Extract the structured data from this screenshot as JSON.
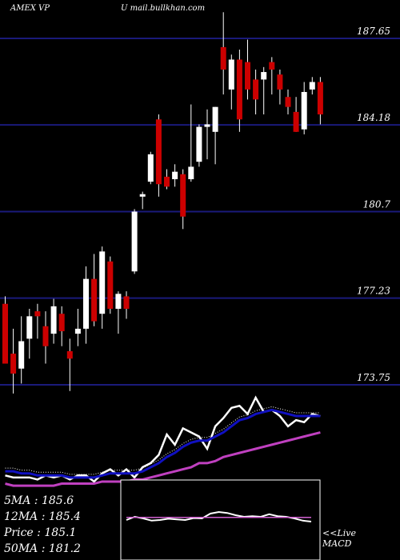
{
  "header": {
    "exchange_symbol": "AMEX  VP",
    "source": "U mail.bullkhan.com"
  },
  "stats": {
    "ma5": "5MA : 185.6",
    "ma12": "12MA : 185.4",
    "price": "Price   : 185.1",
    "ma50": "50MA : 181.2"
  },
  "macd_label": {
    "live": "<<Live",
    "name": "MACD"
  },
  "colors": {
    "background": "#000000",
    "bull": "#ffffff",
    "bear": "#cc0000",
    "gridline": "#1a1a7a",
    "ma_fast": "#1010c0",
    "ma_slow": "#c040c0",
    "macd_line": "#ffffff",
    "macd_signal": "#d060d0"
  },
  "chart_data": [
    {
      "type": "candlestick",
      "title": "",
      "yticks": [
        187.65,
        184.18,
        180.7,
        177.23,
        173.75
      ],
      "ylim": [
        173.75,
        189.1
      ],
      "grid": true,
      "candles": [
        {
          "o": 177.0,
          "h": 177.3,
          "l": 174.6,
          "c": 174.6
        },
        {
          "o": 175.0,
          "h": 176.0,
          "l": 173.4,
          "c": 174.2
        },
        {
          "o": 174.4,
          "h": 176.5,
          "l": 173.8,
          "c": 175.5
        },
        {
          "o": 175.6,
          "h": 176.8,
          "l": 174.8,
          "c": 176.5
        },
        {
          "o": 176.7,
          "h": 177.0,
          "l": 175.6,
          "c": 176.5
        },
        {
          "o": 176.1,
          "h": 176.7,
          "l": 174.6,
          "c": 175.3
        },
        {
          "o": 175.8,
          "h": 177.2,
          "l": 175.4,
          "c": 176.9
        },
        {
          "o": 176.6,
          "h": 176.9,
          "l": 175.3,
          "c": 175.9
        },
        {
          "o": 175.1,
          "h": 175.6,
          "l": 173.5,
          "c": 174.8
        },
        {
          "o": 175.8,
          "h": 176.8,
          "l": 175.3,
          "c": 176.0
        },
        {
          "o": 176.0,
          "h": 178.5,
          "l": 175.4,
          "c": 178.0
        },
        {
          "o": 178.0,
          "h": 179.0,
          "l": 176.1,
          "c": 176.3
        },
        {
          "o": 176.6,
          "h": 179.3,
          "l": 176.0,
          "c": 179.1
        },
        {
          "o": 178.7,
          "h": 178.9,
          "l": 176.6,
          "c": 176.8
        },
        {
          "o": 176.8,
          "h": 177.5,
          "l": 175.8,
          "c": 177.4
        },
        {
          "o": 177.3,
          "h": 177.5,
          "l": 176.4,
          "c": 176.8
        },
        {
          "o": 178.3,
          "h": 180.8,
          "l": 178.2,
          "c": 180.7
        },
        {
          "o": 181.3,
          "h": 181.5,
          "l": 180.8,
          "c": 181.4
        },
        {
          "o": 181.9,
          "h": 183.1,
          "l": 181.8,
          "c": 183.0
        },
        {
          "o": 184.4,
          "h": 184.6,
          "l": 181.3,
          "c": 181.8
        },
        {
          "o": 182.1,
          "h": 182.4,
          "l": 181.6,
          "c": 181.7
        },
        {
          "o": 182.0,
          "h": 182.6,
          "l": 181.7,
          "c": 182.3
        },
        {
          "o": 182.2,
          "h": 182.4,
          "l": 180.0,
          "c": 180.5
        },
        {
          "o": 182.0,
          "h": 185.0,
          "l": 181.9,
          "c": 182.5
        },
        {
          "o": 182.7,
          "h": 184.2,
          "l": 182.5,
          "c": 184.1
        },
        {
          "o": 184.1,
          "h": 184.8,
          "l": 182.8,
          "c": 184.2
        },
        {
          "o": 183.9,
          "h": 184.9,
          "l": 182.6,
          "c": 184.9
        },
        {
          "o": 187.3,
          "h": 188.7,
          "l": 185.4,
          "c": 186.4
        },
        {
          "o": 185.6,
          "h": 187.0,
          "l": 184.8,
          "c": 186.8
        },
        {
          "o": 186.8,
          "h": 187.2,
          "l": 183.9,
          "c": 184.4
        },
        {
          "o": 186.7,
          "h": 187.6,
          "l": 185.2,
          "c": 185.6
        },
        {
          "o": 186.0,
          "h": 186.4,
          "l": 184.6,
          "c": 185.2
        },
        {
          "o": 186.0,
          "h": 186.5,
          "l": 184.6,
          "c": 186.3
        },
        {
          "o": 186.7,
          "h": 186.9,
          "l": 185.4,
          "c": 186.4
        },
        {
          "o": 186.2,
          "h": 186.4,
          "l": 185.0,
          "c": 185.6
        },
        {
          "o": 185.3,
          "h": 185.6,
          "l": 184.6,
          "c": 184.9
        },
        {
          "o": 184.7,
          "h": 185.3,
          "l": 183.9,
          "c": 183.9
        },
        {
          "o": 184.0,
          "h": 185.9,
          "l": 183.8,
          "c": 185.5
        },
        {
          "o": 185.6,
          "h": 186.1,
          "l": 185.4,
          "c": 185.9
        },
        {
          "o": 185.9,
          "h": 186.1,
          "l": 184.2,
          "c": 184.6
        }
      ]
    },
    {
      "type": "line",
      "title": "",
      "series": [
        {
          "values": [
            12,
            11,
            11,
            11,
            10,
            12,
            11,
            12,
            10,
            12,
            12,
            9,
            13,
            15,
            12,
            15,
            11,
            16,
            18,
            22,
            32,
            27,
            35,
            33,
            31,
            25,
            36,
            40,
            45,
            46,
            42,
            50,
            43,
            44,
            41,
            36,
            39,
            38,
            42,
            41
          ]
        },
        {
          "values": [
            14,
            14,
            13,
            13,
            12,
            12,
            12,
            12,
            11,
            11,
            11,
            11,
            12,
            13,
            13,
            13,
            13,
            14,
            16,
            18,
            21,
            23,
            26,
            28,
            29,
            29,
            31,
            33,
            36,
            39,
            40,
            42,
            43,
            44,
            43,
            42,
            41,
            41,
            41,
            41
          ]
        },
        {
          "values": [
            8,
            7,
            7,
            7,
            7,
            7,
            7,
            8,
            8,
            8,
            8,
            8,
            9,
            9,
            9,
            9,
            10,
            10,
            11,
            12,
            13,
            14,
            15,
            16,
            18,
            18,
            19,
            21,
            22,
            23,
            24,
            25,
            26,
            27,
            28,
            29,
            30,
            31,
            32,
            33
          ]
        }
      ]
    },
    {
      "type": "line",
      "title": "",
      "series": [
        {
          "values": [
            0.0,
            0.1,
            0.05,
            -0.02,
            0.0,
            0.04,
            0.02,
            0.0,
            0.06,
            0.05,
            0.2,
            0.25,
            0.22,
            0.15,
            0.1,
            0.12,
            0.1,
            0.18,
            0.12,
            0.1,
            0.05,
            -0.02,
            -0.05
          ]
        },
        {
          "values": [
            0.08,
            0.08,
            0.08,
            0.08,
            0.08,
            0.08,
            0.08,
            0.08,
            0.08,
            0.08,
            0.08,
            0.08,
            0.08,
            0.08,
            0.08,
            0.08,
            0.08,
            0.08,
            0.08,
            0.08,
            0.08,
            0.08,
            0.08
          ]
        }
      ]
    }
  ]
}
